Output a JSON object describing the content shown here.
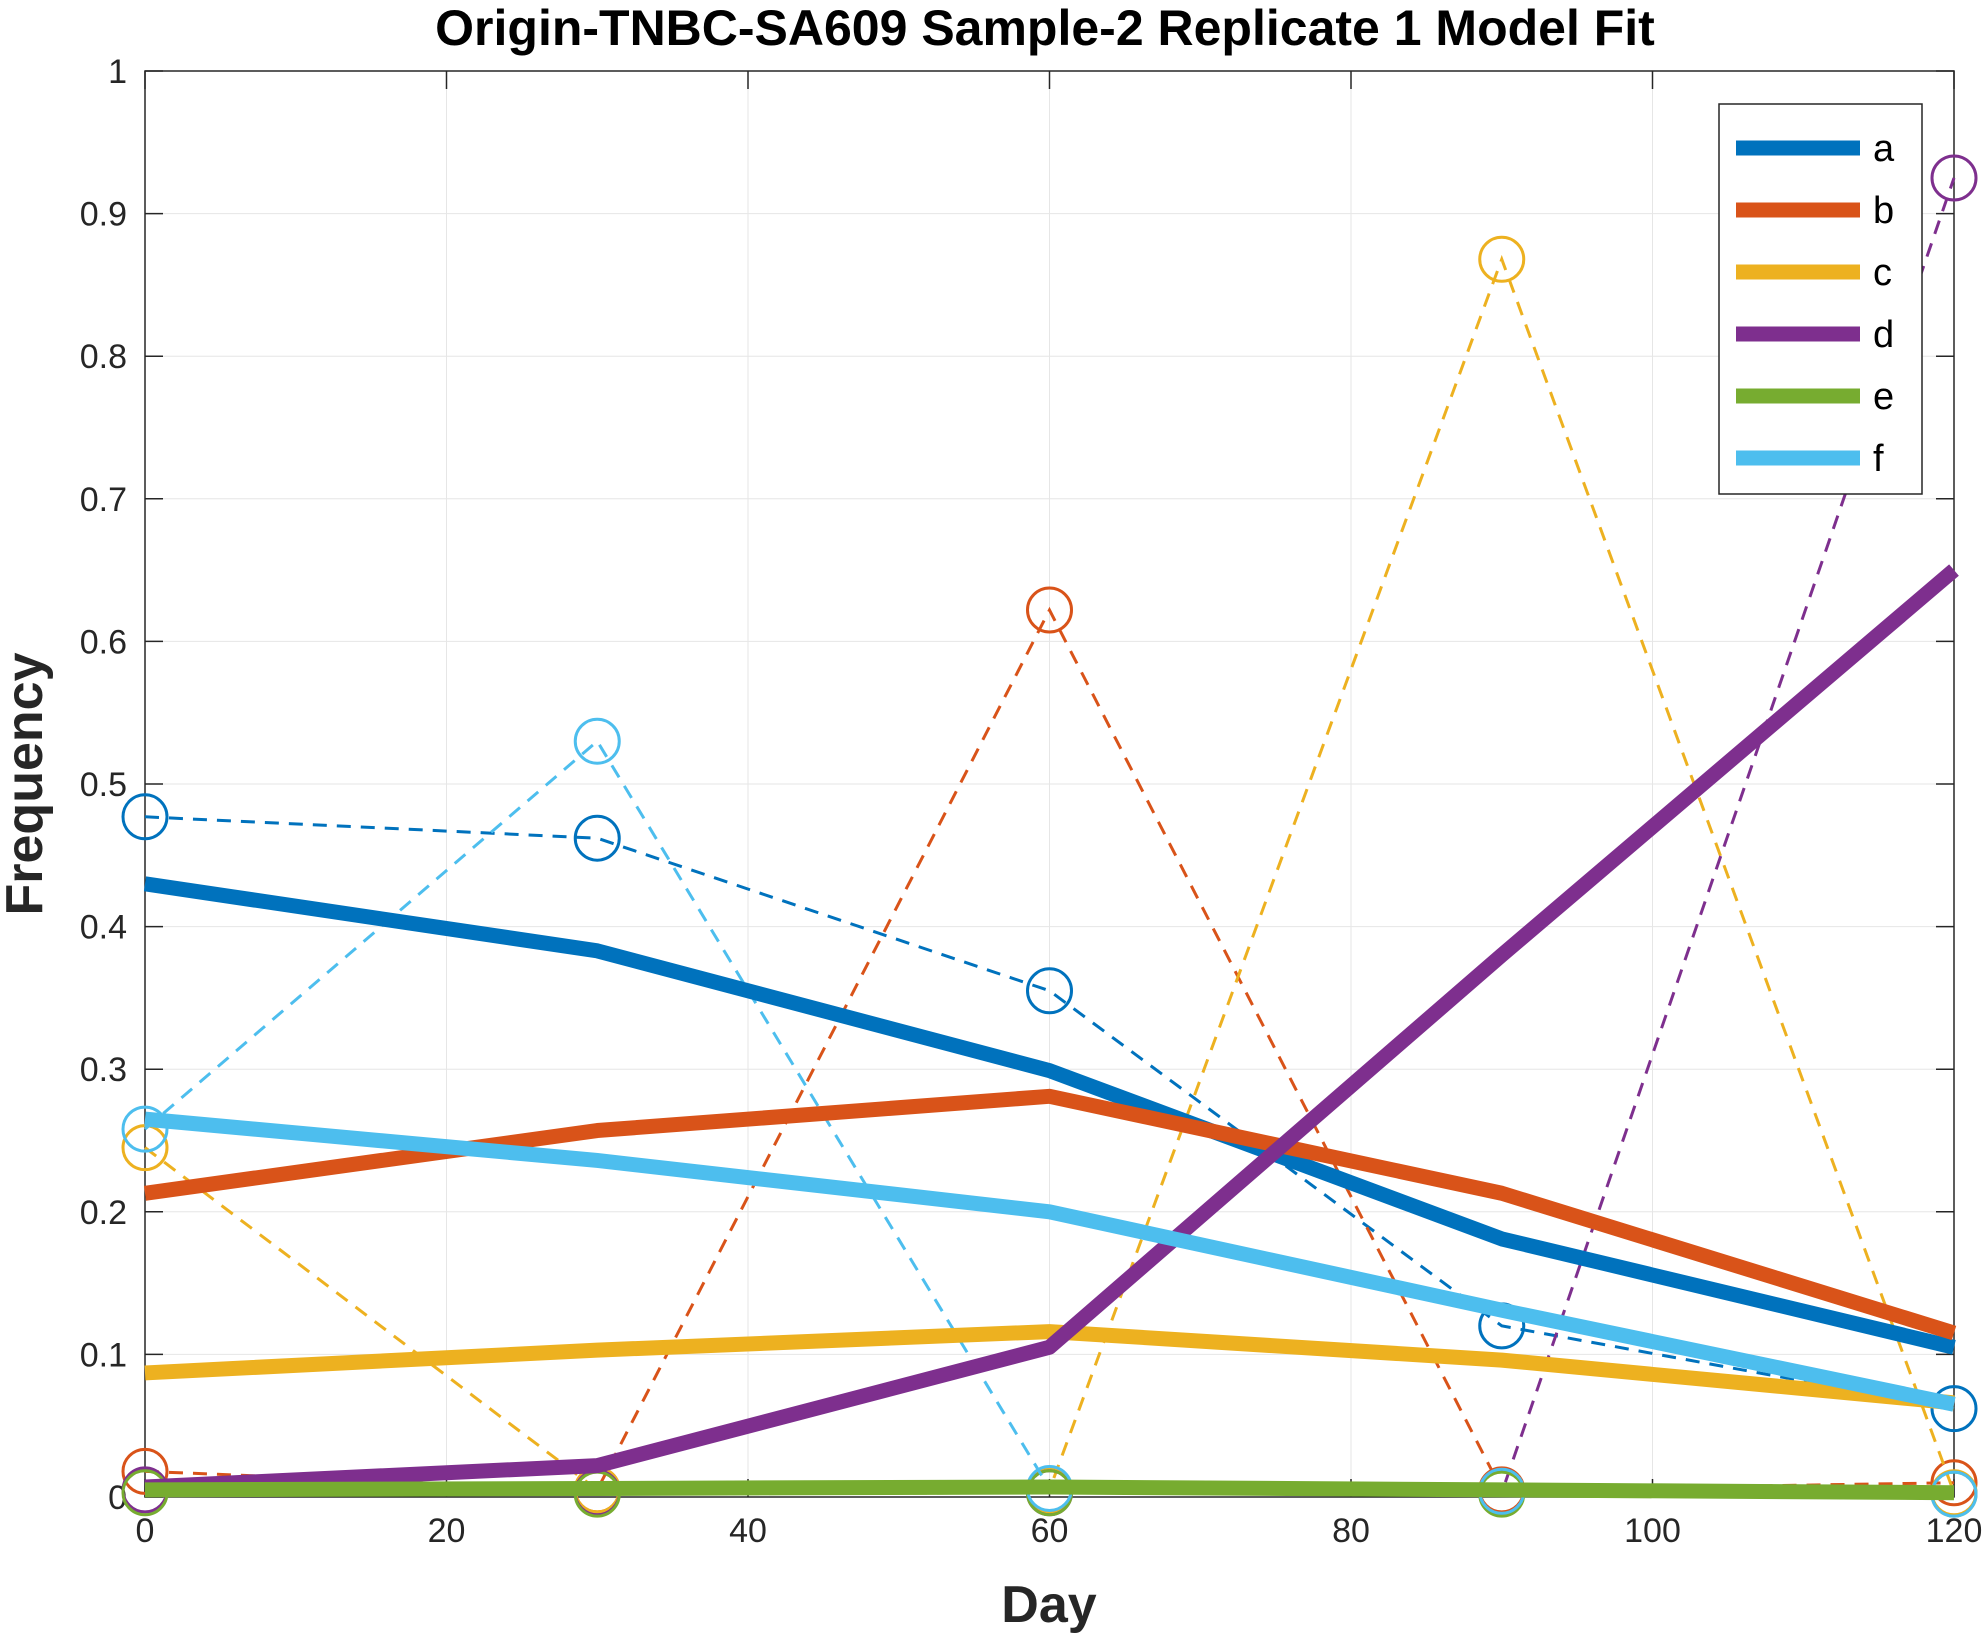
{
  "chart_data": {
    "type": "line",
    "title": "Origin-TNBC-SA609 Sample-2 Replicate 1 Model Fit",
    "xlabel": "Day",
    "ylabel": "Frequency",
    "xlim": [
      0,
      120
    ],
    "ylim": [
      0,
      1
    ],
    "xticks": [
      0,
      20,
      40,
      60,
      80,
      100,
      120
    ],
    "yticks": [
      0,
      0.1,
      0.2,
      0.3,
      0.4,
      0.5,
      0.6,
      0.7,
      0.8,
      0.9,
      1
    ],
    "ytick_labels": [
      "0",
      "0.1",
      "0.2",
      "0.3",
      "0.4",
      "0.5",
      "0.6",
      "0.7",
      "0.8",
      "0.9",
      "1"
    ],
    "grid": true,
    "legend_position": "top-right",
    "x": [
      0,
      30,
      60,
      90,
      120
    ],
    "series": [
      {
        "name": "a",
        "color": "#0072BD",
        "fit": [
          0.43,
          0.383,
          0.299,
          0.181,
          0.105
        ],
        "observed": [
          0.477,
          0.462,
          0.355,
          0.12,
          0.062
        ]
      },
      {
        "name": "b",
        "color": "#D95319",
        "fit": [
          0.213,
          0.257,
          0.281,
          0.213,
          0.115
        ],
        "observed": [
          0.018,
          0.005,
          0.622,
          0.005,
          0.01
        ]
      },
      {
        "name": "c",
        "color": "#EDB120",
        "fit": [
          0.087,
          0.103,
          0.116,
          0.096,
          0.066
        ],
        "observed": [
          0.245,
          0.005,
          0.005,
          0.868,
          0.003
        ]
      },
      {
        "name": "d",
        "color": "#7E2F8E",
        "fit": [
          0.007,
          0.022,
          0.105,
          0.38,
          0.65
        ],
        "observed": [
          0.005,
          0.003,
          0.003,
          0.003,
          0.925
        ]
      },
      {
        "name": "e",
        "color": "#77AC30",
        "fit": [
          0.005,
          0.006,
          0.007,
          0.005,
          0.003
        ],
        "observed": [
          0.003,
          0.002,
          0.003,
          0.002,
          0.002
        ]
      },
      {
        "name": "f",
        "color": "#4DBEEE",
        "fit": [
          0.265,
          0.236,
          0.2,
          0.131,
          0.065
        ],
        "observed": [
          0.258,
          0.53,
          0.006,
          0.004,
          0.002
        ]
      }
    ]
  }
}
